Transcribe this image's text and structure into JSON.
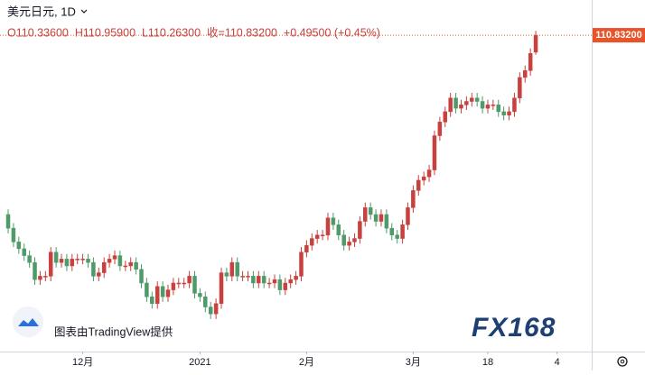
{
  "chart_data": {
    "type": "candlestick",
    "title": "美元日元, 1D",
    "ohlc_text": "O110.33600  H110.95900  L110.26300  收=110.83200  +0.49500 (+0.45%)",
    "last_price_label": "110.83200",
    "watermark": "图表由TradingView提供",
    "logo": "FX168",
    "up_color": "#c8413e",
    "down_color": "#4e9a68",
    "last_color": "#e8542a",
    "ylim": [
      101.6,
      111.86
    ],
    "xlim": [
      -1.53,
      109.5
    ],
    "xticks": [
      {
        "value": 14,
        "label": "12月"
      },
      {
        "value": 36,
        "label": "2021"
      },
      {
        "value": 56,
        "label": "2月"
      },
      {
        "value": 76,
        "label": "3月"
      },
      {
        "value": 90,
        "label": "18"
      },
      {
        "value": 103,
        "label": "4"
      }
    ],
    "open": [
      105.6,
      105.2,
      104.8,
      104.6,
      104.4,
      104.2,
      103.7,
      103.8,
      103.8,
      104.5,
      104.2,
      104.3,
      104.1,
      104.3,
      104.3,
      104.3,
      104.2,
      103.8,
      103.9,
      104.2,
      104.3,
      104.4,
      104.1,
      104.1,
      104.2,
      104.0,
      103.6,
      103.2,
      103.0,
      103.5,
      103.2,
      103.4,
      103.6,
      103.6,
      103.6,
      103.8,
      103.3,
      103.2,
      102.9,
      102.7,
      103.0,
      103.9,
      103.8,
      104.2,
      103.8,
      103.8,
      103.8,
      103.6,
      103.8,
      103.6,
      103.6,
      103.7,
      103.4,
      103.6,
      103.7,
      103.8,
      104.5,
      104.7,
      104.9,
      105.0,
      105.0,
      105.5,
      105.3,
      105.0,
      104.7,
      104.8,
      104.9,
      105.4,
      105.8,
      105.6,
      105.4,
      105.6,
      105.2,
      105.0,
      104.9,
      105.3,
      105.8,
      106.3,
      106.6,
      106.7,
      106.9,
      107.9,
      108.3,
      108.6,
      109.0,
      108.7,
      108.8,
      108.9,
      109.0,
      108.9,
      108.7,
      108.8,
      108.8,
      108.6,
      108.5,
      108.6,
      109.0,
      109.6,
      109.8,
      110.336
    ],
    "high": [
      105.75,
      105.35,
      104.95,
      104.75,
      104.55,
      104.35,
      103.95,
      103.95,
      104.65,
      104.65,
      104.45,
      104.45,
      104.45,
      104.45,
      104.45,
      104.45,
      104.35,
      104.05,
      104.35,
      104.45,
      104.55,
      104.55,
      104.25,
      104.35,
      104.35,
      104.15,
      103.75,
      103.35,
      103.65,
      103.65,
      103.55,
      103.75,
      103.75,
      103.75,
      103.95,
      103.95,
      103.45,
      103.35,
      103.05,
      103.15,
      104.05,
      104.05,
      104.35,
      104.35,
      103.95,
      103.95,
      103.95,
      103.95,
      103.95,
      103.75,
      103.85,
      103.85,
      103.75,
      103.85,
      103.95,
      104.65,
      104.85,
      105.05,
      105.15,
      105.15,
      105.65,
      105.65,
      105.45,
      105.15,
      104.95,
      105.05,
      105.55,
      105.95,
      105.95,
      105.75,
      105.75,
      105.75,
      105.35,
      105.15,
      105.45,
      105.95,
      106.45,
      106.75,
      106.85,
      107.05,
      108.05,
      108.45,
      108.75,
      109.15,
      109.15,
      108.95,
      109.05,
      109.15,
      109.15,
      109.05,
      108.95,
      108.95,
      108.95,
      108.75,
      108.75,
      109.15,
      109.75,
      109.95,
      110.45,
      110.959
    ],
    "low": [
      105.05,
      104.65,
      104.45,
      104.25,
      104.05,
      103.55,
      103.55,
      103.65,
      103.65,
      104.05,
      104.05,
      103.95,
      103.95,
      104.15,
      104.15,
      104.05,
      103.65,
      103.65,
      103.75,
      104.05,
      104.15,
      103.95,
      103.95,
      103.95,
      103.85,
      103.45,
      103.05,
      102.85,
      102.85,
      103.05,
      103.05,
      103.25,
      103.45,
      103.45,
      103.45,
      103.15,
      103.05,
      102.75,
      102.55,
      102.55,
      102.85,
      103.65,
      103.65,
      103.65,
      103.65,
      103.65,
      103.45,
      103.45,
      103.45,
      103.45,
      103.45,
      103.25,
      103.25,
      103.45,
      103.55,
      103.65,
      104.35,
      104.55,
      104.75,
      104.85,
      104.85,
      105.15,
      104.85,
      104.55,
      104.55,
      104.65,
      104.75,
      105.25,
      105.45,
      105.25,
      105.25,
      105.05,
      104.85,
      104.75,
      104.75,
      105.15,
      105.65,
      106.15,
      106.45,
      106.55,
      106.75,
      107.75,
      108.15,
      108.45,
      108.55,
      108.55,
      108.65,
      108.75,
      108.75,
      108.55,
      108.55,
      108.65,
      108.45,
      108.35,
      108.35,
      108.45,
      108.85,
      109.45,
      109.65,
      110.263
    ],
    "close": [
      105.2,
      104.8,
      104.6,
      104.4,
      104.2,
      103.7,
      103.8,
      103.8,
      104.5,
      104.2,
      104.3,
      104.1,
      104.3,
      104.3,
      104.3,
      104.2,
      103.8,
      103.9,
      104.2,
      104.3,
      104.4,
      104.1,
      104.1,
      104.2,
      104.0,
      103.6,
      103.2,
      103.0,
      103.5,
      103.2,
      103.4,
      103.6,
      103.6,
      103.6,
      103.8,
      103.3,
      103.2,
      102.9,
      102.7,
      103.0,
      103.9,
      103.8,
      104.2,
      103.8,
      103.8,
      103.8,
      103.6,
      103.8,
      103.6,
      103.6,
      103.7,
      103.4,
      103.6,
      103.7,
      103.8,
      104.5,
      104.7,
      104.9,
      105.0,
      105.0,
      105.5,
      105.3,
      105.0,
      104.7,
      104.8,
      104.9,
      105.4,
      105.8,
      105.6,
      105.4,
      105.6,
      105.2,
      105.0,
      104.9,
      105.3,
      105.8,
      106.3,
      106.6,
      106.7,
      106.9,
      107.9,
      108.3,
      108.6,
      109.0,
      108.7,
      108.8,
      108.9,
      109.0,
      108.9,
      108.7,
      108.8,
      108.8,
      108.6,
      108.5,
      108.6,
      109.0,
      109.6,
      109.8,
      110.3,
      110.832
    ]
  }
}
